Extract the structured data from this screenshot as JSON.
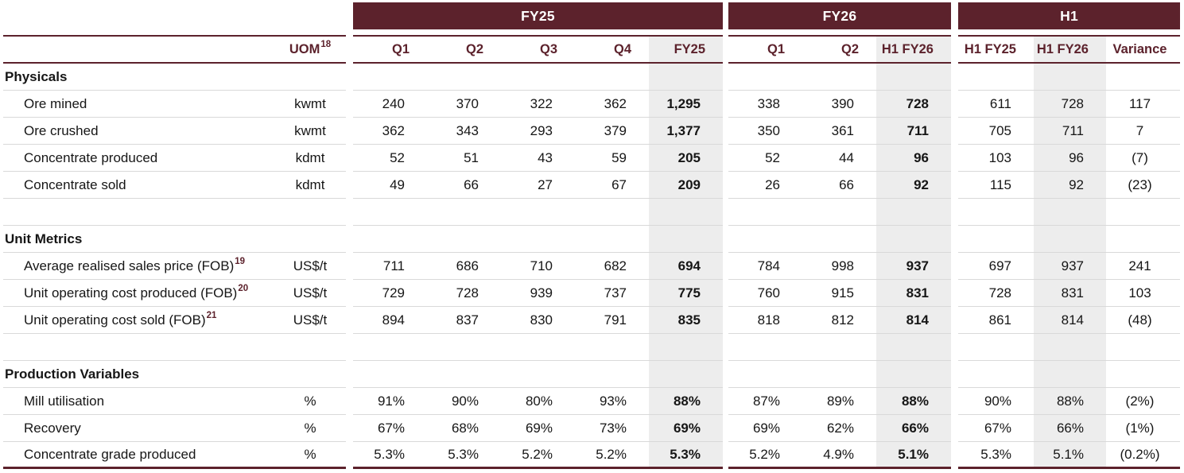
{
  "table": {
    "colors": {
      "maroon": "#5c222c",
      "highlight": "#ededed",
      "separator": "#d9d9d9"
    },
    "groups": [
      {
        "label": "FY25"
      },
      {
        "label": "FY26"
      },
      {
        "label": "H1"
      }
    ],
    "uom_header": {
      "text": "UOM",
      "superscript": "18"
    },
    "columns": {
      "fy25": [
        "Q1",
        "Q2",
        "Q3",
        "Q4",
        "FY25"
      ],
      "fy26": [
        "Q1",
        "Q2",
        "H1 FY26"
      ],
      "h1": [
        "H1 FY25",
        "H1 FY26",
        "Variance"
      ]
    },
    "sections": [
      {
        "title": "Physicals",
        "rows": [
          {
            "label": "Ore mined",
            "uom": "kwmt",
            "fy25": [
              "240",
              "370",
              "322",
              "362",
              "1,295"
            ],
            "fy26": [
              "338",
              "390",
              "728"
            ],
            "h1": [
              "611",
              "728",
              "117"
            ]
          },
          {
            "label": "Ore crushed",
            "uom": "kwmt",
            "fy25": [
              "362",
              "343",
              "293",
              "379",
              "1,377"
            ],
            "fy26": [
              "350",
              "361",
              "711"
            ],
            "h1": [
              "705",
              "711",
              "7"
            ]
          },
          {
            "label": "Concentrate produced",
            "uom": "kdmt",
            "fy25": [
              "52",
              "51",
              "43",
              "59",
              "205"
            ],
            "fy26": [
              "52",
              "44",
              "96"
            ],
            "h1": [
              "103",
              "96",
              "(7)"
            ]
          },
          {
            "label": "Concentrate sold",
            "uom": "kdmt",
            "fy25": [
              "49",
              "66",
              "27",
              "67",
              "209"
            ],
            "fy26": [
              "26",
              "66",
              "92"
            ],
            "h1": [
              "115",
              "92",
              "(23)"
            ]
          }
        ]
      },
      {
        "title": "Unit Metrics",
        "rows": [
          {
            "label": "Average realised sales price (FOB)",
            "superscript": "19",
            "uom": "US$/t",
            "fy25": [
              "711",
              "686",
              "710",
              "682",
              "694"
            ],
            "fy26": [
              "784",
              "998",
              "937"
            ],
            "h1": [
              "697",
              "937",
              "241"
            ]
          },
          {
            "label": "Unit operating cost produced (FOB)",
            "superscript": "20",
            "uom": "US$/t",
            "fy25": [
              "729",
              "728",
              "939",
              "737",
              "775"
            ],
            "fy26": [
              "760",
              "915",
              "831"
            ],
            "h1": [
              "728",
              "831",
              "103"
            ]
          },
          {
            "label": "Unit operating cost sold (FOB)",
            "superscript": "21",
            "uom": "US$/t",
            "fy25": [
              "894",
              "837",
              "830",
              "791",
              "835"
            ],
            "fy26": [
              "818",
              "812",
              "814"
            ],
            "h1": [
              "861",
              "814",
              "(48)"
            ]
          }
        ]
      },
      {
        "title": "Production Variables",
        "rows": [
          {
            "label": "Mill utilisation",
            "uom": "%",
            "fy25": [
              "91%",
              "90%",
              "80%",
              "93%",
              "88%"
            ],
            "fy26": [
              "87%",
              "89%",
              "88%"
            ],
            "h1": [
              "90%",
              "88%",
              "(2%)"
            ]
          },
          {
            "label": "Recovery",
            "uom": "%",
            "fy25": [
              "67%",
              "68%",
              "69%",
              "73%",
              "69%"
            ],
            "fy26": [
              "69%",
              "62%",
              "66%"
            ],
            "h1": [
              "67%",
              "66%",
              "(1%)"
            ]
          },
          {
            "label": "Concentrate grade produced",
            "uom": "%",
            "fy25": [
              "5.3%",
              "5.3%",
              "5.2%",
              "5.2%",
              "5.3%"
            ],
            "fy26": [
              "5.2%",
              "4.9%",
              "5.1%"
            ],
            "h1": [
              "5.3%",
              "5.1%",
              "(0.2%)"
            ]
          }
        ]
      }
    ]
  }
}
